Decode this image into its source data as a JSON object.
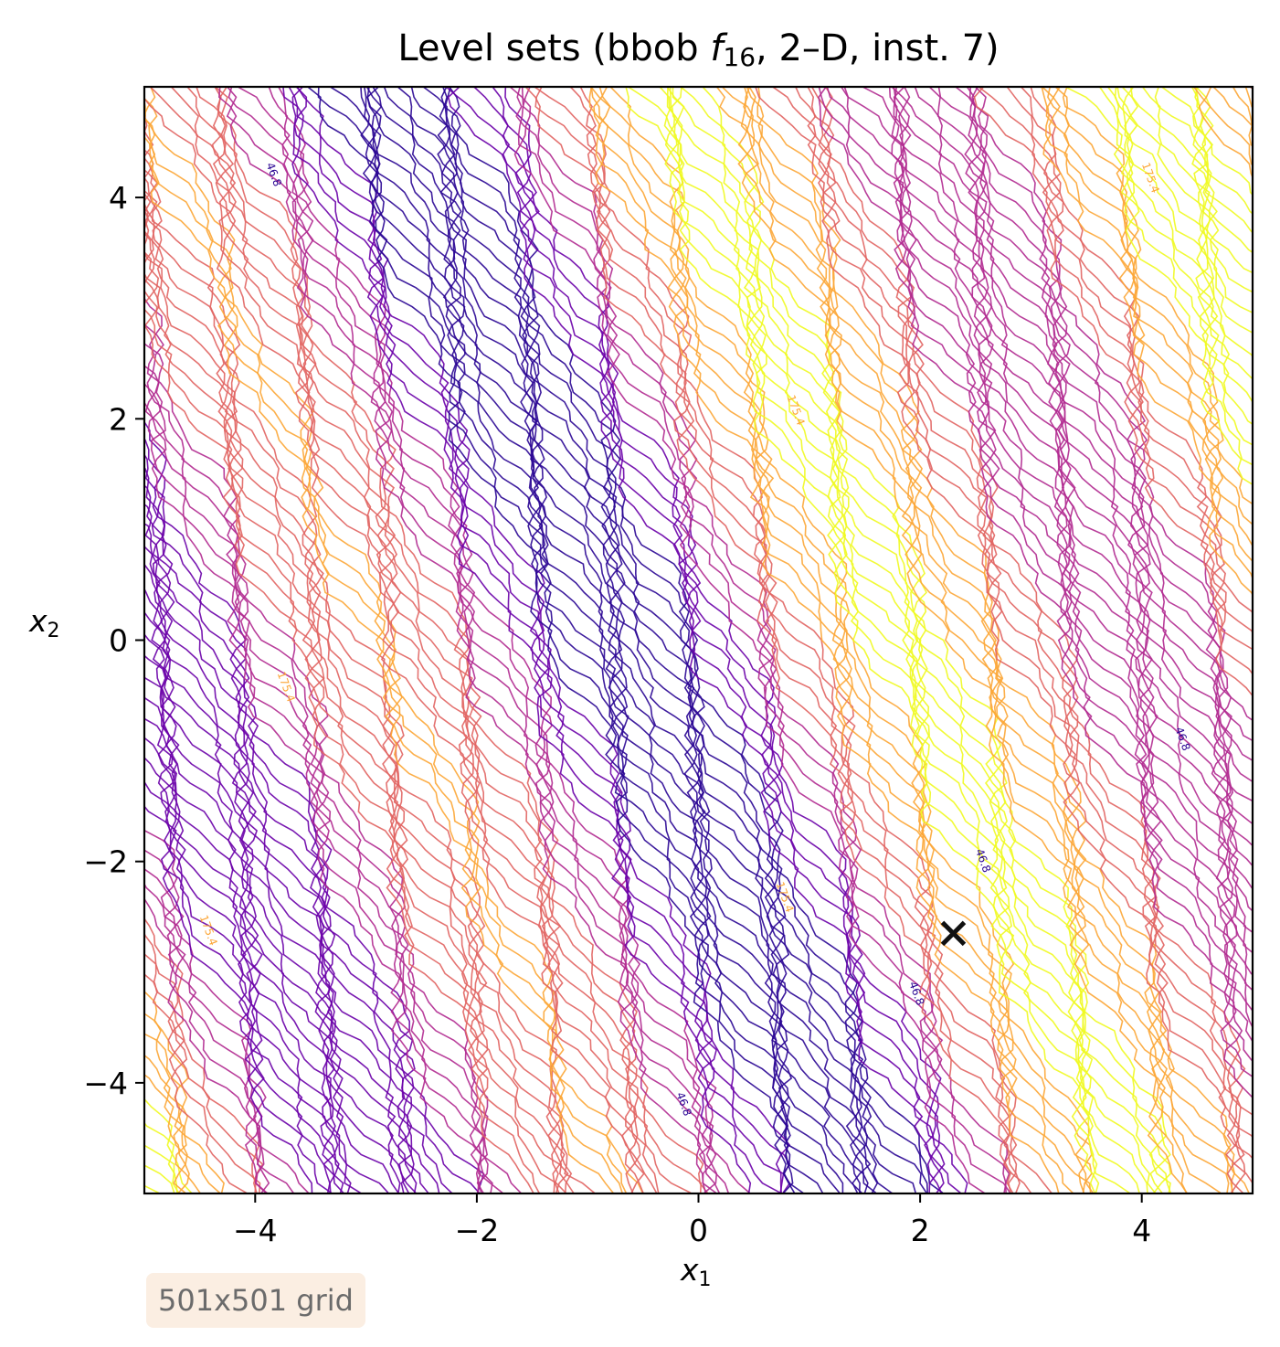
{
  "chart_data": {
    "type": "contour",
    "title": {
      "prefix": "Level sets (bbob ",
      "fname": "f",
      "fsub": "16",
      "suffix": ", 2–D, inst. 7)"
    },
    "xlabel": {
      "base": "x",
      "sub": "1"
    },
    "ylabel": {
      "base": "x",
      "sub": "2"
    },
    "xlim": [
      -5,
      5
    ],
    "ylim": [
      -5,
      5
    ],
    "xticks": [
      -4,
      -2,
      0,
      2,
      4
    ],
    "yticks": [
      -4,
      -2,
      0,
      2,
      4
    ],
    "xtick_labels": [
      "−4",
      "−2",
      "0",
      "2",
      "4"
    ],
    "ytick_labels": [
      "−4",
      "−2",
      "0",
      "2",
      "4"
    ],
    "colormap": "plasma",
    "level_labels": [
      "46.8",
      "175.4"
    ],
    "optimum": {
      "x": 2.3,
      "y": -2.65,
      "marker": "x",
      "color": "#111111"
    },
    "grid": false
  },
  "annotation": {
    "text": "501x501 grid"
  },
  "colors": {
    "level_low": "#2a0593",
    "level_mid1": "#6a00a8",
    "level_mid2": "#b12a90",
    "level_mid3": "#e16462",
    "level_high": "#fca636",
    "level_top": "#f0f921"
  }
}
